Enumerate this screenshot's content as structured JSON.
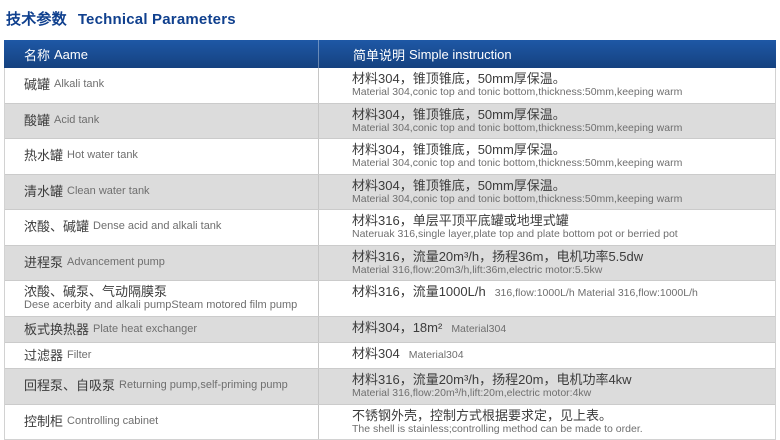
{
  "page_title": {
    "zh": "技术参数",
    "en": "Technical Parameters"
  },
  "colors": {
    "title_blue": "#10408e",
    "header_blue_top": "#1e58a6",
    "header_blue_bottom": "#15417f",
    "row_alt_gray": "#dcdcdc",
    "border_gray": "#cbcbcb",
    "text_dark": "#3c3c3c",
    "text_gray": "#6f6f6f"
  },
  "table": {
    "header": {
      "name_zh": "名称",
      "name_en": "Aame",
      "desc_zh": "简单说明",
      "desc_en": "Simple instruction"
    },
    "rows": [
      {
        "name_zh": "碱罐",
        "name_en": "Alkali tank",
        "desc_zh": "材料304，锥顶锥底，50mm厚保温。",
        "desc_en": "Material 304,conic top and tonic bottom,thickness:50mm,keeping warm",
        "inline": false
      },
      {
        "name_zh": "酸罐",
        "name_en": "Acid tank",
        "desc_zh": "材料304，锥顶锥底，50mm厚保温。",
        "desc_en": "Material 304,conic top and tonic bottom,thickness:50mm,keeping warm",
        "inline": false
      },
      {
        "name_zh": "热水罐",
        "name_en": "Hot water tank",
        "desc_zh": "材料304，锥顶锥底，50mm厚保温。",
        "desc_en": "Material 304,conic top and tonic bottom,thickness:50mm,keeping warm",
        "inline": false
      },
      {
        "name_zh": "清水罐",
        "name_en": "Clean water tank",
        "desc_zh": "材料304，锥顶锥底，50mm厚保温。",
        "desc_en": "Material 304,conic top and tonic bottom,thickness:50mm,keeping warm",
        "inline": false
      },
      {
        "name_zh": "浓酸、碱罐",
        "name_en": "Dense acid and alkali tank",
        "desc_zh": "材料316，单层平顶平底罐或地埋式罐",
        "desc_en": "Nateruak 316,single layer,plate top and plate bottom pot or berried pot",
        "inline": false
      },
      {
        "name_zh": "进程泵",
        "name_en": "Advancement pump",
        "desc_zh": "材料316，流量20m³/h，扬程36m，电机功率5.5dw",
        "desc_en": "Material 316,flow:20m3/h,lift:36m,electric motor:5.5kw",
        "inline": false
      },
      {
        "name_zh": "浓酸、碱泵、气动隔膜泵",
        "name_en": "Dese acerbity and alkali pumpSteam motored film pump",
        "desc_zh": "材料316，流量1000L/h",
        "desc_en": "316,flow:1000L/h Material 316,flow:1000L/h",
        "inline": true
      },
      {
        "name_zh": "板式换热器",
        "name_en": "Plate heat exchanger",
        "desc_zh": "材料304，18m²",
        "desc_en": "Material304",
        "inline": true
      },
      {
        "name_zh": "过滤器",
        "name_en": "Filter",
        "desc_zh": "材料304",
        "desc_en": "Material304",
        "inline": true
      },
      {
        "name_zh": "回程泵、自吸泵",
        "name_en": "Returning pump,self-priming pump",
        "desc_zh": "材料316，流量20m³/h，扬程20m，电机功率4kw",
        "desc_en": "Material 316,flow:20m³/h,lift:20m,electric motor:4kw",
        "inline": false
      },
      {
        "name_zh": "控制柜",
        "name_en": "Controlling cabinet",
        "desc_zh": "不锈钢外壳，控制方式根据要求定，见上表。",
        "desc_en": "The shell is stainless;controlling method can be made to order.",
        "inline": false
      }
    ]
  }
}
